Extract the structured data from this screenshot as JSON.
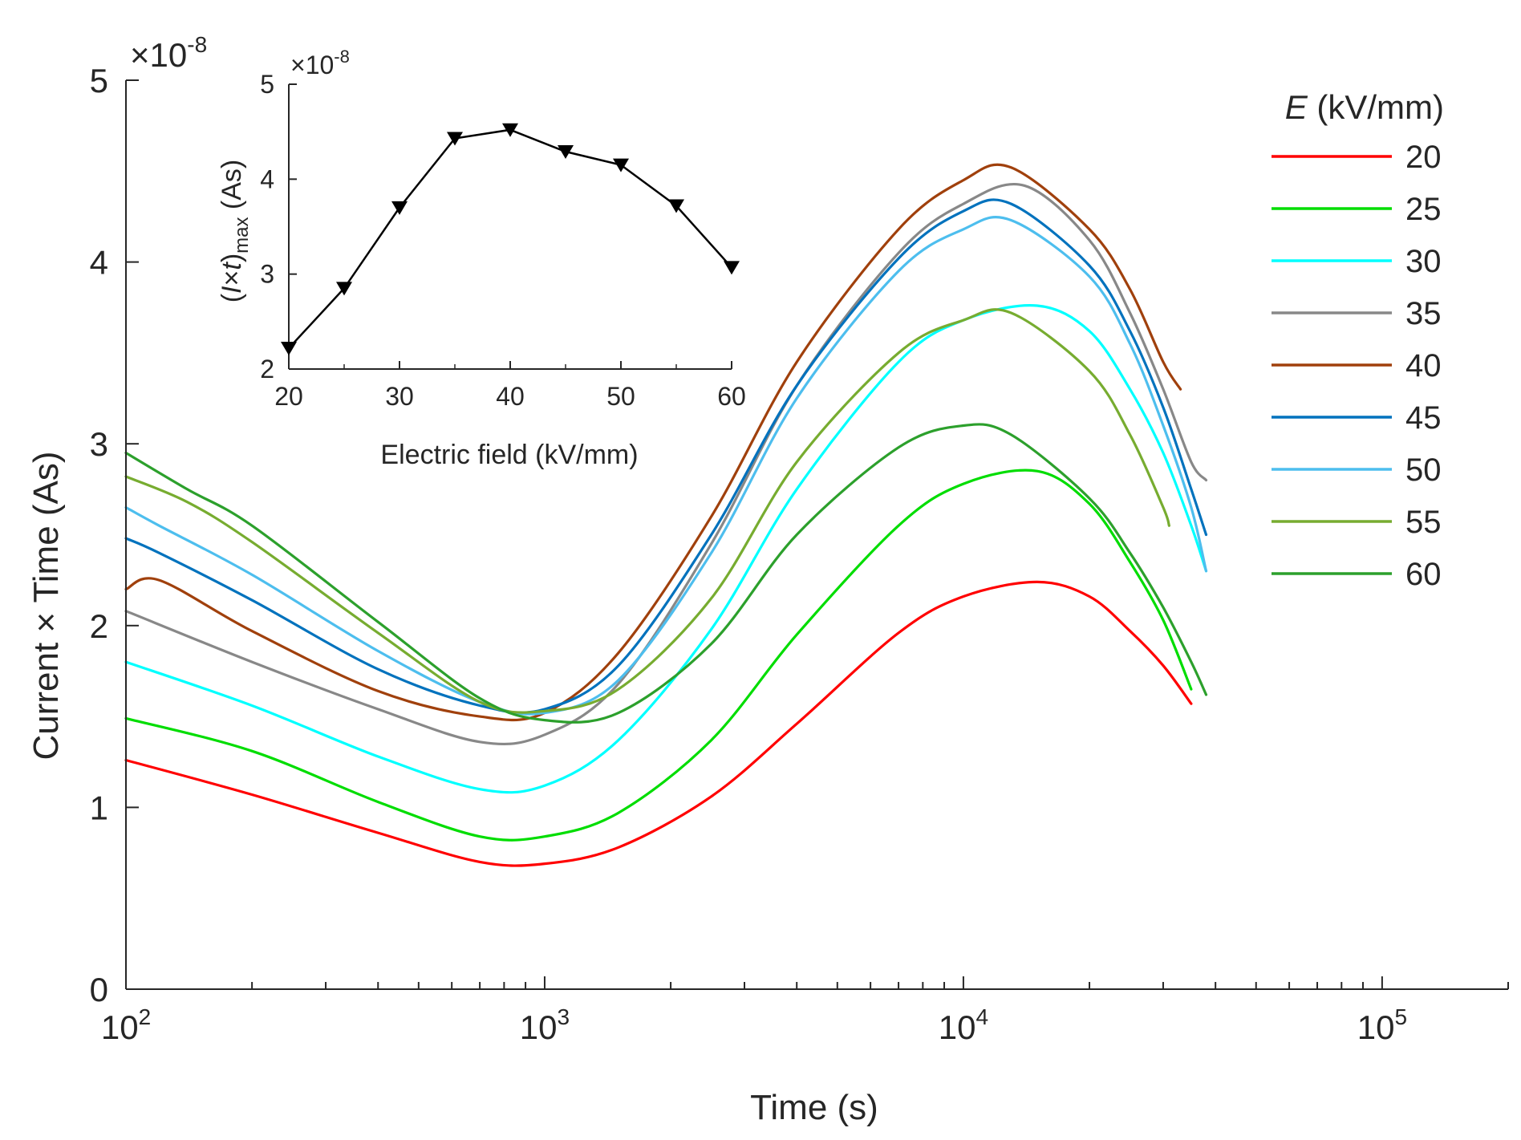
{
  "chart_data": [
    {
      "type": "line",
      "xscale": "log",
      "xlabel": "Time (s)",
      "ylabel": "Current × Time (As)",
      "xlim": [
        100,
        200000
      ],
      "ylim": [
        0,
        5
      ],
      "y_exponent_label": "×10",
      "y_exponent_power": "-8",
      "x_ticks": [
        {
          "value": 100,
          "base": "10",
          "exp": "2"
        },
        {
          "value": 1000,
          "base": "10",
          "exp": "3"
        },
        {
          "value": 10000,
          "base": "10",
          "exp": "4"
        },
        {
          "value": 100000,
          "base": "10",
          "exp": "5"
        }
      ],
      "y_ticks": [
        {
          "value": 0,
          "label": "0"
        },
        {
          "value": 1,
          "label": "1"
        },
        {
          "value": 2,
          "label": "2"
        },
        {
          "value": 3,
          "label": "3"
        },
        {
          "value": 4,
          "label": "4"
        },
        {
          "value": 5,
          "label": "5"
        }
      ],
      "legend": {
        "title_italic": "E",
        "title_rest": " (kV/mm)",
        "location": "right"
      },
      "series": [
        {
          "name": "20",
          "color": "#ff0000",
          "x": [
            100,
            200,
            400,
            700,
            1000,
            1500,
            2500,
            4000,
            7000,
            10000,
            15000,
            20000,
            25000,
            30000,
            35000
          ],
          "y": [
            1.26,
            1.07,
            0.86,
            0.7,
            0.69,
            0.78,
            1.06,
            1.46,
            1.96,
            2.16,
            2.24,
            2.16,
            1.97,
            1.78,
            1.57
          ]
        },
        {
          "name": "25",
          "color": "#00dd00",
          "x": [
            100,
            200,
            400,
            700,
            1000,
            1500,
            2500,
            4000,
            7000,
            10000,
            15000,
            20000,
            25000,
            30000,
            35000
          ],
          "y": [
            1.49,
            1.31,
            1.03,
            0.84,
            0.84,
            0.97,
            1.37,
            1.95,
            2.55,
            2.78,
            2.85,
            2.67,
            2.35,
            2.03,
            1.65
          ]
        },
        {
          "name": "30",
          "color": "#00ffff",
          "x": [
            100,
            200,
            400,
            700,
            1000,
            1500,
            2500,
            4000,
            7000,
            10000,
            15000,
            20000,
            25000,
            30000,
            35000,
            38000
          ],
          "y": [
            1.8,
            1.56,
            1.28,
            1.1,
            1.12,
            1.37,
            1.98,
            2.75,
            3.45,
            3.68,
            3.76,
            3.62,
            3.3,
            2.95,
            2.55,
            2.3
          ]
        },
        {
          "name": "35",
          "color": "#888888",
          "x": [
            100,
            200,
            400,
            700,
            1000,
            1500,
            2500,
            4000,
            7000,
            10000,
            14000,
            20000,
            25000,
            30000,
            35000,
            38000
          ],
          "y": [
            2.08,
            1.8,
            1.54,
            1.36,
            1.4,
            1.68,
            2.45,
            3.32,
            4.05,
            4.32,
            4.42,
            4.12,
            3.72,
            3.3,
            2.9,
            2.8
          ]
        },
        {
          "name": "40",
          "color": "#a0400c",
          "x": [
            100,
            120,
            200,
            400,
            700,
            1000,
            1500,
            2500,
            4000,
            7000,
            10000,
            13000,
            20000,
            25000,
            30000,
            33000
          ],
          "y": [
            2.2,
            2.25,
            1.97,
            1.64,
            1.5,
            1.52,
            1.85,
            2.6,
            3.45,
            4.18,
            4.45,
            4.52,
            4.18,
            3.85,
            3.45,
            3.3
          ]
        },
        {
          "name": "45",
          "color": "#0072bd",
          "x": [
            100,
            120,
            200,
            400,
            700,
            1000,
            1500,
            2500,
            4000,
            7000,
            10000,
            13000,
            20000,
            25000,
            30000,
            35000,
            38000
          ],
          "y": [
            2.48,
            2.4,
            2.14,
            1.76,
            1.56,
            1.54,
            1.78,
            2.5,
            3.32,
            4.02,
            4.28,
            4.32,
            3.98,
            3.62,
            3.2,
            2.75,
            2.5
          ]
        },
        {
          "name": "50",
          "color": "#4dbeee",
          "x": [
            100,
            120,
            200,
            400,
            700,
            1000,
            1500,
            2500,
            4000,
            7000,
            10000,
            13000,
            20000,
            25000,
            30000,
            35000,
            38000
          ],
          "y": [
            2.65,
            2.55,
            2.28,
            1.86,
            1.58,
            1.52,
            1.7,
            2.4,
            3.25,
            3.95,
            4.18,
            4.23,
            3.92,
            3.55,
            3.1,
            2.65,
            2.3
          ]
        },
        {
          "name": "55",
          "color": "#77ac30",
          "x": [
            100,
            140,
            200,
            400,
            700,
            1000,
            1500,
            2500,
            4000,
            7000,
            10000,
            13000,
            20000,
            25000,
            30000,
            31000
          ],
          "y": [
            2.82,
            2.68,
            2.46,
            1.96,
            1.58,
            1.53,
            1.65,
            2.15,
            2.9,
            3.5,
            3.68,
            3.72,
            3.4,
            3.05,
            2.65,
            2.55
          ]
        },
        {
          "name": "60",
          "color": "#2ca02c",
          "x": [
            100,
            140,
            200,
            400,
            700,
            1000,
            1500,
            2500,
            4000,
            7000,
            10000,
            13000,
            20000,
            25000,
            30000,
            35000,
            38000
          ],
          "y": [
            2.95,
            2.75,
            2.55,
            2.02,
            1.6,
            1.48,
            1.52,
            1.9,
            2.5,
            2.98,
            3.1,
            3.05,
            2.7,
            2.4,
            2.1,
            1.8,
            1.62
          ]
        }
      ]
    },
    {
      "type": "line",
      "inset": true,
      "xlabel": "Electric field (kV/mm)",
      "ylabel_open": "(",
      "ylabel_italic_i": "I",
      "ylabel_times": "×",
      "ylabel_italic_t": "t",
      "ylabel_close": ")",
      "ylabel_sub": "max",
      "ylabel_unit": " (As)",
      "y_exponent_label": "×10",
      "y_exponent_power": "-8",
      "xlim": [
        20,
        60
      ],
      "ylim": [
        2,
        5
      ],
      "x_ticks": [
        {
          "value": 20,
          "label": "20"
        },
        {
          "value": 30,
          "label": "30"
        },
        {
          "value": 40,
          "label": "40"
        },
        {
          "value": 50,
          "label": "50"
        },
        {
          "value": 60,
          "label": "60"
        }
      ],
      "y_ticks": [
        {
          "value": 2,
          "label": "2"
        },
        {
          "value": 3,
          "label": "3"
        },
        {
          "value": 4,
          "label": "4"
        },
        {
          "value": 5,
          "label": "5"
        }
      ],
      "x": [
        20,
        25,
        30,
        35,
        40,
        45,
        50,
        55,
        60
      ],
      "y": [
        2.22,
        2.85,
        3.7,
        4.43,
        4.52,
        4.29,
        4.15,
        3.72,
        3.07
      ],
      "marker": "triangle-down",
      "color": "#000000"
    }
  ]
}
